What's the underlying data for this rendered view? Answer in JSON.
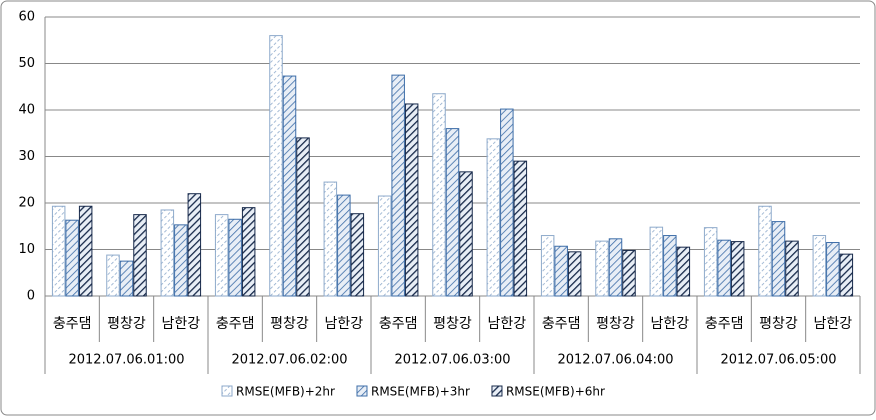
{
  "chart_data": {
    "type": "bar",
    "categories": [
      "충주댐",
      "평창강",
      "남한강",
      "충주댐",
      "평창강",
      "남한강",
      "충주댐",
      "평창강",
      "남한강",
      "충주댐",
      "평창강",
      "남한강",
      "충주댐",
      "평창강",
      "남한강"
    ],
    "groups": [
      "2012.07.06.01:00",
      "2012.07.06.02:00",
      "2012.07.06.03:00",
      "2012.07.06.04:00",
      "2012.07.06.05:00"
    ],
    "series": [
      {
        "name": "RMSE(MFB)+2hr",
        "color": "#8eaacb",
        "values": [
          19.3,
          8.8,
          18.5,
          17.5,
          56,
          24.5,
          21.5,
          43.5,
          33.8,
          13,
          11.8,
          14.8,
          14.7,
          19.3,
          13
        ]
      },
      {
        "name": "RMSE(MFB)+3hr",
        "color": "#3d6da8",
        "values": [
          16.3,
          7.5,
          15.3,
          16.5,
          47.3,
          21.7,
          47.5,
          36,
          40.2,
          10.7,
          12.3,
          13,
          12,
          16,
          11.5
        ]
      },
      {
        "name": "RMSE(MFB)+6hr",
        "color": "#17294a",
        "values": [
          19.3,
          17.5,
          22,
          19,
          34,
          17.7,
          41.3,
          26.7,
          29,
          9.5,
          9.8,
          10.5,
          11.7,
          11.8,
          9
        ]
      }
    ],
    "ylim": [
      0,
      60
    ],
    "yticks": [
      0,
      10,
      20,
      30,
      40,
      50,
      60
    ],
    "grid": true,
    "legend": "bottom"
  }
}
